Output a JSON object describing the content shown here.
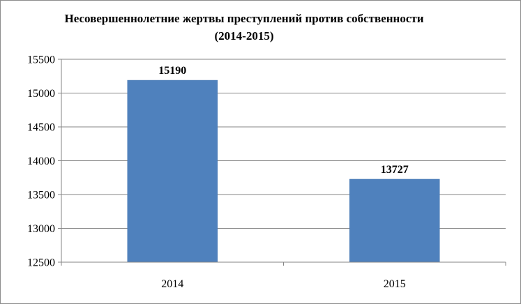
{
  "chart_data": {
    "type": "bar",
    "title": "Несовершеннолетние жертвы преступлений против собственности (2014-2015)",
    "categories": [
      "2014",
      "2015"
    ],
    "values": [
      15190,
      13727
    ],
    "data_labels": [
      "15190",
      "13727"
    ],
    "ylim": [
      12500,
      15500
    ],
    "yticks": [
      12500,
      13000,
      13500,
      14000,
      14500,
      15000,
      15500
    ],
    "ytick_labels": [
      "12500",
      "13000",
      "13500",
      "14000",
      "14500",
      "15000",
      "15500"
    ],
    "grid": true,
    "legend": "none",
    "bar_color": "#4f81bd",
    "xlabel": "",
    "ylabel": ""
  }
}
